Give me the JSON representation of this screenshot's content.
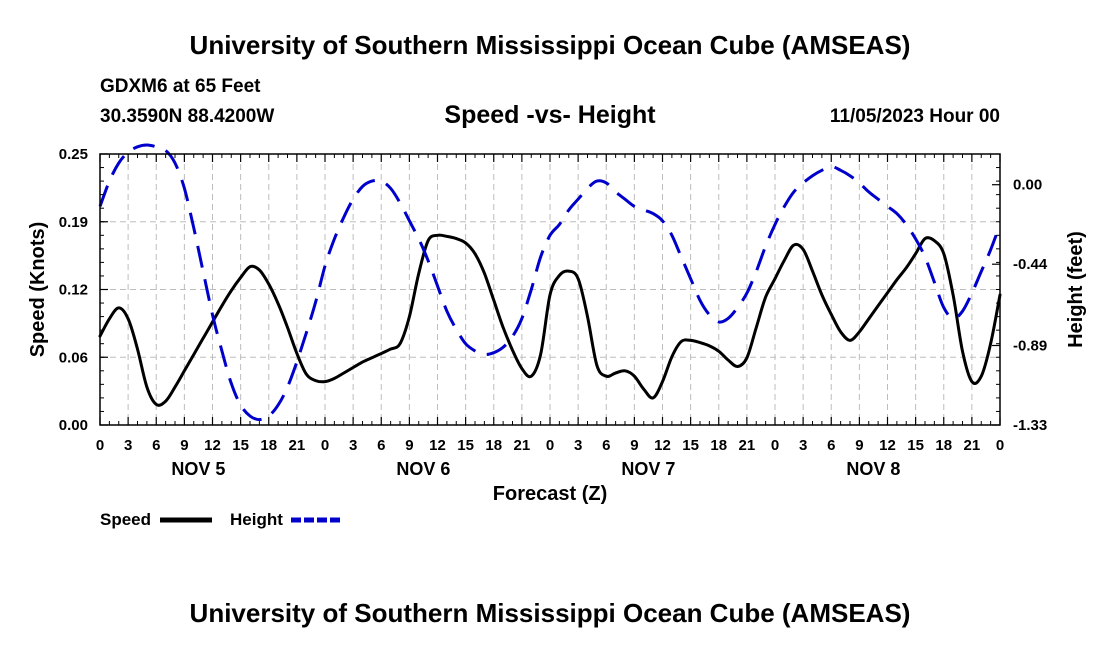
{
  "header": {
    "title": "University of Southern Mississippi Ocean Cube (AMSEAS)",
    "station": "GDXM6 at 65 Feet",
    "coords": "30.3590N  88.4200W",
    "subtitle": "Speed -vs- Height",
    "datetime": "11/05/2023 Hour 00"
  },
  "footer": {
    "title": "University of Southern Mississippi Ocean Cube (AMSEAS)"
  },
  "chart_data": {
    "type": "line",
    "title": "Speed -vs- Height",
    "xlabel": "Forecast (Z)",
    "ylabel": "Speed (Knots)",
    "y2label": "Height (feet)",
    "xlim": [
      0,
      96
    ],
    "ylim": [
      0,
      0.25
    ],
    "y2lim": [
      -1.33,
      0.17
    ],
    "x_tick_labels": [
      "0",
      "3",
      "6",
      "9",
      "12",
      "15",
      "18",
      "21",
      "0",
      "3",
      "6",
      "9",
      "12",
      "15",
      "18",
      "21",
      "0",
      "3",
      "6",
      "9",
      "12",
      "15",
      "18",
      "21",
      "0",
      "3",
      "6",
      "9",
      "12",
      "15",
      "18",
      "21",
      "0"
    ],
    "y_ticks": [
      "0.00",
      "0.06",
      "0.12",
      "0.19",
      "0.25"
    ],
    "y_tick_values": [
      0,
      0.0625,
      0.125,
      0.1875,
      0.25
    ],
    "y2_ticks": [
      "0.00",
      "-0.44",
      "-0.89",
      "-1.33"
    ],
    "y2_tick_values": [
      0,
      -0.44,
      -0.89,
      -1.33
    ],
    "day_labels": [
      "NOV 5",
      "NOV 6",
      "NOV 7",
      "NOV 8"
    ],
    "grid": true,
    "legend_position": "bottom-left",
    "series": [
      {
        "name": "Speed",
        "axis": "left",
        "color": "#000000",
        "style": "solid",
        "x": [
          0,
          1,
          2,
          3,
          4,
          5,
          6,
          7,
          8,
          9,
          10,
          11,
          12,
          13,
          14,
          15,
          16,
          17,
          18,
          19,
          20,
          21,
          22,
          23,
          24,
          25,
          26,
          27,
          28,
          29,
          30,
          31,
          32,
          33,
          34,
          35,
          36,
          37,
          38,
          39,
          40,
          41,
          42,
          43,
          44,
          45,
          46,
          47,
          48,
          49,
          50,
          51,
          52,
          53,
          54,
          55,
          56,
          57,
          58,
          59,
          60,
          61,
          62,
          63,
          64,
          65,
          66,
          67,
          68,
          69,
          70,
          71,
          72,
          73,
          74,
          75,
          76,
          77,
          78,
          79,
          80,
          81,
          82,
          83,
          84,
          85,
          86,
          87,
          88,
          89,
          90,
          91,
          92,
          93,
          94,
          95,
          96
        ],
        "values": [
          0.082,
          0.098,
          0.108,
          0.098,
          0.07,
          0.035,
          0.019,
          0.022,
          0.035,
          0.05,
          0.065,
          0.08,
          0.095,
          0.11,
          0.124,
          0.136,
          0.146,
          0.143,
          0.13,
          0.112,
          0.09,
          0.066,
          0.047,
          0.041,
          0.04,
          0.043,
          0.048,
          0.053,
          0.058,
          0.062,
          0.066,
          0.07,
          0.075,
          0.1,
          0.14,
          0.17,
          0.175,
          0.174,
          0.172,
          0.168,
          0.158,
          0.14,
          0.115,
          0.09,
          0.069,
          0.052,
          0.045,
          0.065,
          0.12,
          0.138,
          0.142,
          0.135,
          0.1,
          0.055,
          0.045,
          0.048,
          0.05,
          0.045,
          0.033,
          0.025,
          0.04,
          0.063,
          0.077,
          0.078,
          0.076,
          0.073,
          0.068,
          0.06,
          0.054,
          0.062,
          0.09,
          0.118,
          0.135,
          0.152,
          0.166,
          0.162,
          0.142,
          0.12,
          0.102,
          0.086,
          0.078,
          0.086,
          0.098,
          0.11,
          0.122,
          0.134,
          0.145,
          0.158,
          0.172,
          0.17,
          0.158,
          0.12,
          0.068,
          0.04,
          0.045,
          0.075,
          0.12
        ]
      },
      {
        "name": "Height",
        "axis": "right",
        "color": "#0000cc",
        "style": "dashed",
        "x": [
          0,
          1,
          2,
          3,
          4,
          5,
          6,
          7,
          8,
          9,
          10,
          11,
          12,
          13,
          14,
          15,
          16,
          17,
          18,
          19,
          20,
          21,
          22,
          23,
          24,
          25,
          26,
          27,
          28,
          29,
          30,
          31,
          32,
          33,
          34,
          35,
          36,
          37,
          38,
          39,
          40,
          41,
          42,
          43,
          44,
          45,
          46,
          47,
          48,
          49,
          50,
          51,
          52,
          53,
          54,
          55,
          56,
          57,
          58,
          59,
          60,
          61,
          62,
          63,
          64,
          65,
          66,
          67,
          68,
          69,
          70,
          71,
          72,
          73,
          74,
          75,
          76,
          77,
          78,
          79,
          80,
          81,
          82,
          83,
          84,
          85,
          86,
          87,
          88,
          89,
          90,
          91,
          92,
          93,
          94,
          95,
          96
        ],
        "values": [
          -0.12,
          0.02,
          0.12,
          0.18,
          0.21,
          0.22,
          0.21,
          0.19,
          0.12,
          -0.02,
          -0.24,
          -0.48,
          -0.72,
          -0.92,
          -1.1,
          -1.22,
          -1.28,
          -1.3,
          -1.28,
          -1.22,
          -1.12,
          -0.98,
          -0.82,
          -0.65,
          -0.45,
          -0.3,
          -0.18,
          -0.08,
          -0.01,
          0.02,
          0.02,
          -0.02,
          -0.1,
          -0.2,
          -0.3,
          -0.42,
          -0.56,
          -0.7,
          -0.8,
          -0.88,
          -0.92,
          -0.94,
          -0.93,
          -0.9,
          -0.84,
          -0.74,
          -0.58,
          -0.4,
          -0.28,
          -0.22,
          -0.14,
          -0.08,
          -0.02,
          0.02,
          0.01,
          -0.04,
          -0.08,
          -0.12,
          -0.14,
          -0.16,
          -0.2,
          -0.28,
          -0.4,
          -0.52,
          -0.64,
          -0.72,
          -0.76,
          -0.74,
          -0.68,
          -0.6,
          -0.48,
          -0.34,
          -0.22,
          -0.12,
          -0.04,
          0.01,
          0.05,
          0.08,
          0.1,
          0.08,
          0.05,
          0.01,
          -0.04,
          -0.08,
          -0.12,
          -0.16,
          -0.22,
          -0.3,
          -0.4,
          -0.54,
          -0.68,
          -0.74,
          -0.7,
          -0.6,
          -0.48,
          -0.36,
          -0.22
        ]
      }
    ],
    "legend": [
      {
        "label": "Speed",
        "color": "#000000",
        "style": "solid"
      },
      {
        "label": "Height",
        "color": "#0000cc",
        "style": "dashed"
      }
    ]
  }
}
